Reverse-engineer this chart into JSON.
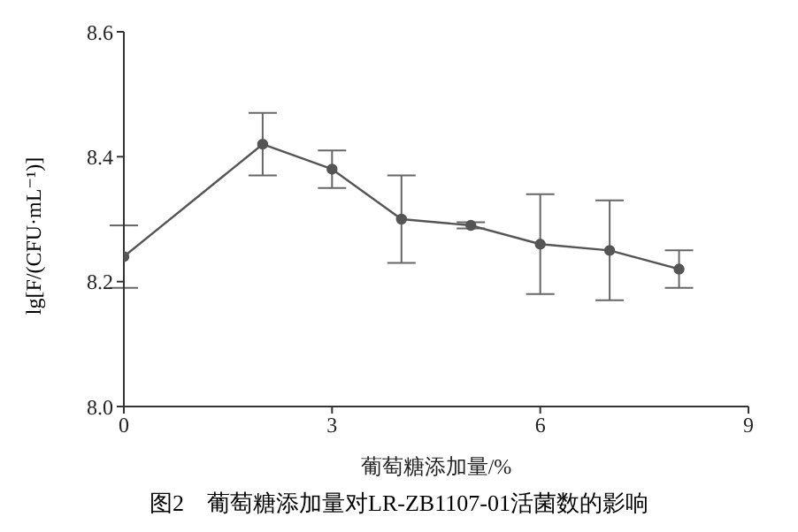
{
  "chart_data": {
    "type": "line",
    "title": "图2　葡萄糖添加量对LR-ZB1107-01活菌数的影响",
    "xlabel": "葡萄糖添加量/%",
    "ylabel": "lg[F/(CFU·mL⁻¹)]",
    "x": [
      0,
      2,
      3,
      4,
      5,
      6,
      7,
      8
    ],
    "series": [
      {
        "color": "#555555",
        "values": [
          8.24,
          8.42,
          8.38,
          8.3,
          8.29,
          8.26,
          8.25,
          8.22
        ],
        "errors": [
          0.05,
          0.05,
          0.03,
          0.07,
          0.005,
          0.08,
          0.08,
          0.03
        ]
      }
    ],
    "xlim": [
      0,
      9
    ],
    "xticks": [
      0,
      3,
      6,
      9
    ],
    "ylim": [
      8.0,
      8.6
    ],
    "yticks": [
      {
        "value": 8.0,
        "label": "8.0"
      },
      {
        "value": 8.2,
        "label": "8.2"
      },
      {
        "value": 8.4,
        "label": "8.4"
      },
      {
        "value": 8.6,
        "label": "8.6"
      }
    ],
    "marker": "circle",
    "grid": false
  }
}
